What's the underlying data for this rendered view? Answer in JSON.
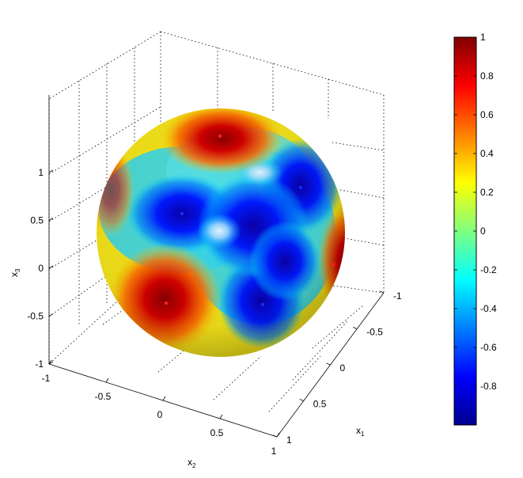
{
  "chart_data": {
    "type": "surface",
    "surface": "unit sphere colored by scalar field",
    "xlabel": "x",
    "xlabel_sub": "1",
    "ylabel": "x",
    "ylabel_sub": "2",
    "zlabel": "x",
    "zlabel_sub": "3",
    "x_ticks": [
      "-1",
      "-0.5",
      "0",
      "0.5",
      "1"
    ],
    "y_ticks": [
      "-1",
      "-0.5",
      "0",
      "0.5",
      "1"
    ],
    "z_ticks": [
      "-1",
      "-0.5",
      "0",
      "0.5",
      "1"
    ],
    "xlim": [
      -1,
      1
    ],
    "ylim": [
      -1,
      1
    ],
    "zlim": [
      -1,
      1
    ],
    "colorbar": {
      "colormap": "jet",
      "clim": [
        -1,
        1
      ],
      "ticks": [
        "1",
        "0.8",
        "0.6",
        "0.4",
        "0.2",
        "0",
        "-0.2",
        "-0.4",
        "-0.6",
        "-0.8"
      ]
    },
    "maxima_regions": [
      "top",
      "lower-left",
      "right-edge"
    ],
    "minima_regions": [
      "upper-right",
      "left",
      "bottom-center"
    ],
    "grid": true,
    "box": true
  }
}
